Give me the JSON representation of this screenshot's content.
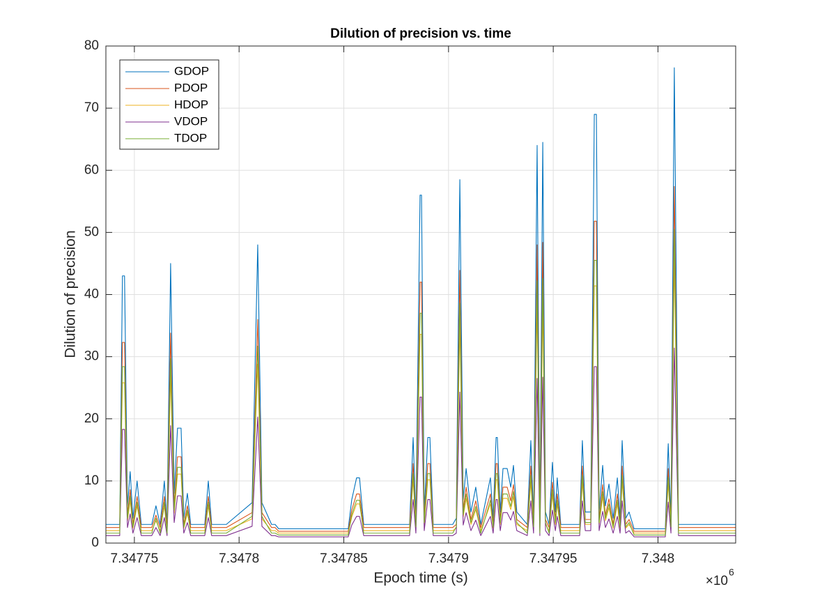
{
  "chart_data": {
    "type": "line",
    "title": "Dilution of precision vs. time",
    "xlabel": "Epoch time (s)",
    "ylabel": "Dilution of precision",
    "x_exponent": {
      "base": "×10",
      "power": "6"
    },
    "x": [
      7347736.4,
      7347743.0,
      7347744.3,
      7347745.3,
      7347746.7,
      7347748.0,
      7347749.3,
      7347751.3,
      7347753.3,
      7347758.3,
      7347760.3,
      7347762.3,
      7347764.3,
      7347765.6,
      7347767.3,
      7347769.0,
      7347770.6,
      7347772.3,
      7347773.6,
      7347775.3,
      7347776.9,
      7347783.6,
      7347785.3,
      7347786.9,
      7347793.9,
      7347806.2,
      7347808.9,
      7347810.9,
      7347815.5,
      7347817.2,
      7347818.9,
      7347852.1,
      7347853.8,
      7347856.1,
      7347857.5,
      7347859.5,
      7347881.4,
      7347883.1,
      7347884.4,
      7347886.4,
      7347887.1,
      7347888.4,
      7347890.1,
      7347891.1,
      7347892.7,
      7347902.0,
      7347903.7,
      7347905.4,
      7347907.0,
      7347908.4,
      7347910.7,
      7347913.0,
      7347915.4,
      7347920.0,
      7347921.3,
      7347922.7,
      7347923.3,
      7347924.7,
      7347926.0,
      7347928.0,
      7347929.7,
      7347931.0,
      7347932.6,
      7347937.6,
      7347939.3,
      7347940.6,
      7347942.3,
      7347943.6,
      7347945.0,
      7347946.3,
      7347948.0,
      7347949.6,
      7347951.0,
      7347951.9,
      7347953.6,
      7347962.6,
      7347963.9,
      7347965.3,
      7347967.9,
      7347969.6,
      7347970.6,
      7347971.9,
      7347973.6,
      7347974.9,
      7347976.6,
      7347978.6,
      7347980.6,
      7347981.9,
      7347982.9,
      7347984.6,
      7347986.2,
      7347988.6,
      7348003.5,
      7348004.9,
      7348006.2,
      7348007.8,
      7348009.8,
      7348037.1
    ],
    "series": [
      {
        "name": "GDOP",
        "color": "#0072BD",
        "values": [
          3,
          3,
          43,
          43,
          6,
          11.5,
          4,
          10,
          3,
          3,
          6,
          3,
          10,
          3,
          45,
          8,
          18.5,
          18.5,
          4,
          8,
          3,
          3,
          10,
          3,
          3,
          6.5,
          48,
          6.5,
          3,
          3,
          2.3,
          2.3,
          7,
          10.5,
          10.5,
          3,
          3,
          17,
          4,
          56,
          56,
          5,
          17,
          17,
          3,
          3,
          4,
          58.5,
          7,
          12,
          5,
          9,
          3,
          10.5,
          4,
          17,
          17,
          5,
          12,
          12,
          9,
          12.5,
          5,
          3,
          16.5,
          4,
          64,
          3,
          64.5,
          5,
          3,
          13,
          5,
          10.5,
          3,
          3,
          16.5,
          5,
          5,
          69,
          69,
          5,
          12.5,
          6,
          9.5,
          4,
          10.5,
          4,
          16.5,
          4,
          5,
          2.3,
          2.3,
          16,
          4,
          76.5,
          3,
          3
        ]
      },
      {
        "name": "PDOP",
        "color": "#D95319",
        "values": [
          2.5,
          2.5,
          32.3,
          32.3,
          4.5,
          8.6,
          3,
          7.5,
          2.5,
          2.5,
          4.5,
          2.5,
          7.5,
          2.5,
          33.8,
          6,
          13.9,
          13.9,
          3,
          6,
          2.5,
          2.5,
          7.5,
          2.5,
          2.5,
          4.9,
          36,
          4.9,
          2.5,
          2.5,
          1.9,
          1.9,
          5.3,
          7.9,
          7.9,
          2.5,
          2.5,
          12.8,
          3,
          42,
          42,
          3.8,
          12.8,
          12.8,
          2.5,
          2.5,
          3,
          43.9,
          5.3,
          9,
          3.8,
          6.8,
          2.5,
          7.9,
          3,
          12.8,
          12.8,
          3.8,
          9,
          9,
          6.8,
          9.4,
          3.8,
          2.5,
          12.4,
          3,
          48,
          2.5,
          48.4,
          3.8,
          2.5,
          9.8,
          3.8,
          7.9,
          2.5,
          2.5,
          12.4,
          3.8,
          3.8,
          51.8,
          51.8,
          3.8,
          9.4,
          4.5,
          7.1,
          3,
          7.9,
          3,
          12.4,
          3,
          3.8,
          1.9,
          1.9,
          12,
          3,
          57.4,
          2.5,
          2.5
        ]
      },
      {
        "name": "HDOP",
        "color": "#EDB120",
        "values": [
          2,
          2,
          25.8,
          25.8,
          3.6,
          6.9,
          2.4,
          6,
          2,
          2,
          3.6,
          2,
          6,
          2,
          27,
          4.8,
          11.1,
          11.1,
          2.4,
          4.8,
          2,
          2,
          6,
          2,
          2,
          3.9,
          28.8,
          3.9,
          2,
          2,
          1.6,
          1.6,
          4.2,
          6.3,
          6.3,
          2,
          2,
          10.2,
          2.4,
          33.6,
          33.6,
          3,
          10.2,
          10.2,
          2,
          2,
          2.4,
          35.1,
          4.2,
          7.2,
          3,
          5.4,
          2,
          6.3,
          2.4,
          10.2,
          10.2,
          3,
          7.2,
          7.2,
          5.4,
          7.5,
          3,
          2,
          9.9,
          2.4,
          38.4,
          2,
          38.7,
          3,
          2,
          7.8,
          3,
          6.3,
          2,
          2,
          9.9,
          3,
          3,
          41.4,
          41.4,
          3,
          7.5,
          3.6,
          5.7,
          2.4,
          6.3,
          2.4,
          9.9,
          2.4,
          3,
          1.6,
          1.6,
          9.6,
          2.4,
          45.9,
          2,
          2
        ]
      },
      {
        "name": "VDOP",
        "color": "#7E2F8E",
        "values": [
          1.2,
          1.2,
          18.3,
          18.3,
          2.5,
          4.7,
          1.6,
          4.1,
          1.2,
          1.2,
          2.5,
          1.2,
          4.1,
          1.2,
          18.9,
          3.3,
          7.6,
          7.6,
          1.6,
          3.3,
          1.2,
          1.2,
          4.1,
          1.2,
          1.2,
          2.7,
          20.3,
          2.7,
          1.2,
          1.2,
          1,
          1,
          2.9,
          4.3,
          4.3,
          1.2,
          1.2,
          7,
          1.6,
          23.5,
          23.5,
          2,
          7,
          7,
          1.2,
          1.2,
          1.6,
          24.3,
          2.9,
          4.9,
          2,
          3.7,
          1.2,
          4.3,
          1.6,
          7,
          7,
          2,
          4.9,
          4.9,
          3.7,
          5.1,
          2,
          1.2,
          6.8,
          1.6,
          26.5,
          1.2,
          26.7,
          2,
          1.2,
          5.3,
          2,
          4.3,
          1.2,
          1.2,
          6.8,
          2,
          2,
          28.4,
          28.4,
          2,
          5.1,
          2.5,
          3.9,
          1.6,
          4.3,
          1.6,
          6.8,
          1.6,
          2,
          1,
          1,
          6.6,
          1.6,
          31.4,
          1.2,
          1.2
        ]
      },
      {
        "name": "TDOP",
        "color": "#77AC30",
        "values": [
          1.6,
          1.6,
          28.4,
          28.4,
          4,
          7.6,
          2.6,
          6.6,
          1.6,
          1.6,
          4,
          1.6,
          6.6,
          1.6,
          29.7,
          5.3,
          12.2,
          12.2,
          2.6,
          5.3,
          1.6,
          1.6,
          6.6,
          1.6,
          1.6,
          4.3,
          31.7,
          4.3,
          1.6,
          1.6,
          1.3,
          1.3,
          4.6,
          6.9,
          6.9,
          1.6,
          1.6,
          11.2,
          2.6,
          37,
          37,
          3.3,
          11.2,
          11.2,
          1.6,
          1.6,
          2.6,
          38.6,
          4.6,
          7.9,
          3.3,
          5.9,
          1.6,
          6.9,
          2.6,
          11.2,
          11.2,
          3.3,
          7.9,
          7.9,
          5.9,
          8.3,
          3.3,
          1.6,
          10.9,
          2.6,
          42.2,
          1.6,
          42.6,
          3.3,
          1.6,
          8.6,
          3.3,
          6.9,
          1.6,
          1.6,
          10.9,
          3.3,
          3.3,
          45.5,
          45.5,
          3.3,
          8.3,
          4,
          6.3,
          2.6,
          6.9,
          2.6,
          10.9,
          2.6,
          3.3,
          1.3,
          1.3,
          10.6,
          2.6,
          50.5,
          1.6,
          1.6
        ]
      }
    ],
    "xlim": [
      7347736.4,
      7348037.1
    ],
    "xticks": [
      {
        "value": 7347750,
        "label": "7.34775"
      },
      {
        "value": 7347800,
        "label": "7.3478"
      },
      {
        "value": 7347850,
        "label": "7.34785"
      },
      {
        "value": 7347900,
        "label": "7.3479"
      },
      {
        "value": 7347950,
        "label": "7.34795"
      },
      {
        "value": 7348000,
        "label": "7.348"
      }
    ],
    "ylim": [
      0,
      80
    ],
    "yticks": [
      0,
      10,
      20,
      30,
      40,
      50,
      60,
      70,
      80
    ],
    "grid": true,
    "legend": "northwest"
  }
}
